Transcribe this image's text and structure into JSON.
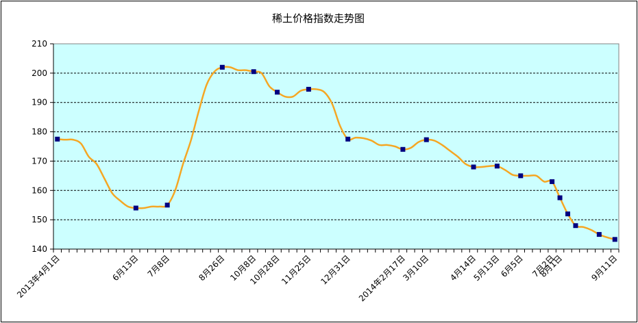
{
  "chart_data": {
    "type": "line",
    "title": "稀土价格指数走势图",
    "xlabel": "",
    "ylabel": "",
    "ylim": [
      140,
      210
    ],
    "yticks": [
      140,
      150,
      160,
      170,
      180,
      190,
      200,
      210
    ],
    "grid": true,
    "legend": "none",
    "x_labels": [
      "2013年4月1日",
      "6月13日",
      "7月8日",
      "8月26日",
      "10月8日",
      "10月28日",
      "11月25日",
      "12月31日",
      "2014年2月17日",
      "3月10日",
      "4月14日",
      "5月13日",
      "6月5日",
      "7月2日",
      "8月1日",
      "9月11日"
    ],
    "colors": {
      "line": "#F5A623",
      "marker": "#000080",
      "plot_bg": "#CCFFFF",
      "grid": "#000000"
    },
    "series": [
      {
        "values": [
          177.5,
          177.3,
          177.3,
          176,
          171.5,
          169,
          164,
          159,
          156.5,
          154.5,
          154,
          154,
          154.5,
          154.5,
          155,
          160,
          169,
          177,
          187,
          196,
          200.5,
          202,
          202,
          201,
          201,
          200.5,
          200,
          195.5,
          193.5,
          192,
          192,
          194,
          194.5,
          194.5,
          193.5,
          189.5,
          182,
          177.5,
          178,
          177.8,
          177,
          175.5,
          175.5,
          175,
          174,
          174.5,
          176.5,
          177.3,
          177,
          175.5,
          173.5,
          171.5,
          169,
          168,
          168,
          168.3,
          168.3,
          167,
          165.3,
          165,
          165,
          165,
          163,
          163,
          157.5,
          152,
          148,
          147.5,
          146.5,
          145,
          144,
          143.3
        ]
      }
    ],
    "marker_indices": [
      0,
      10,
      14,
      21,
      25,
      28,
      32,
      37,
      44,
      47,
      53,
      56,
      59,
      63,
      64,
      65,
      66,
      69,
      71
    ]
  }
}
